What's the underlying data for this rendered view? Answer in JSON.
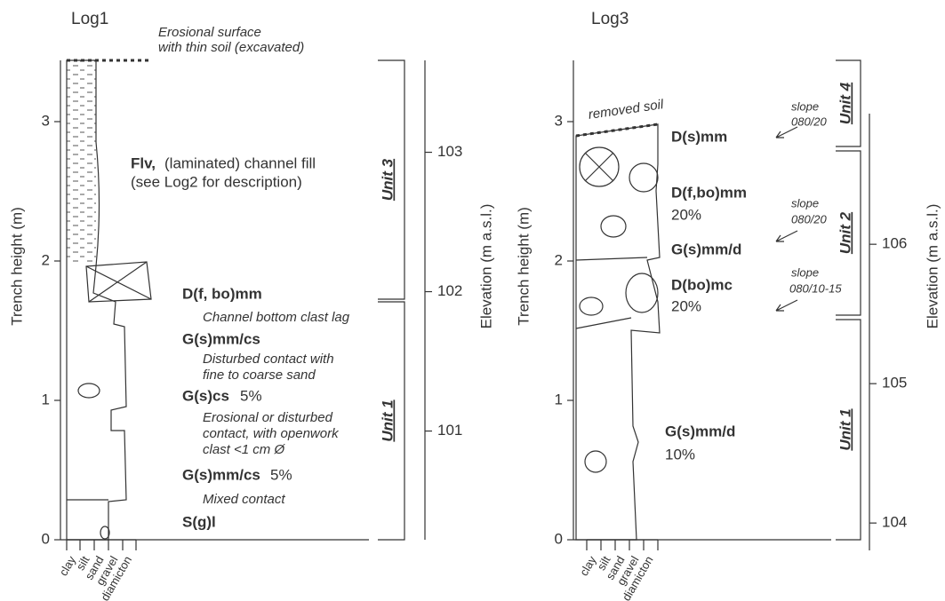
{
  "logs": [
    {
      "title": "Log1",
      "height_axis": {
        "label": "Trench height (m)",
        "ticks": [
          0,
          1,
          2,
          3
        ]
      },
      "elevation_axis": {
        "label": "Elevation (m a.s.l.)",
        "ticks": [
          101,
          102,
          103
        ]
      },
      "grain_sizes": [
        "clay",
        "silt",
        "sand",
        "gravel",
        "diamicton"
      ],
      "units": [
        "Unit 3",
        "Unit 1"
      ],
      "annotations": [
        "Erosional surface",
        "with thin soil (excavated)",
        "Flv,",
        "(laminated) channel fill",
        "(see Log2 for description)",
        "D(f, bo)mm",
        "Channel bottom clast lag",
        "G(s)mm/cs",
        "Disturbed contact with",
        "fine to coarse sand",
        "G(s)cs",
        "5%",
        "Erosional or disturbed",
        "contact, with openwork",
        "clast <1 cm Ø",
        "G(s)mm/cs",
        "5%",
        "Mixed contact",
        "S(g)l"
      ]
    },
    {
      "title": "Log3",
      "height_axis": {
        "label": "Trench height (m)",
        "ticks": [
          0,
          1,
          2,
          3
        ]
      },
      "elevation_axis": {
        "label": "Elevation (m a.s.l.)",
        "ticks": [
          104,
          105,
          106
        ]
      },
      "grain_sizes": [
        "clay",
        "silt",
        "sand",
        "gravel",
        "diamicton"
      ],
      "units": [
        "Unit 4",
        "Unit 2",
        "Unit 1"
      ],
      "annotations": [
        "removed soil",
        "D(s)mm",
        "D(f,bo)mm",
        "20%",
        "G(s)mm/d",
        "D(bo)mc",
        "20%",
        "G(s)mm/d",
        "10%",
        "slope",
        "080/20",
        "slope",
        "080/20",
        "slope",
        "080/10-15"
      ]
    }
  ]
}
